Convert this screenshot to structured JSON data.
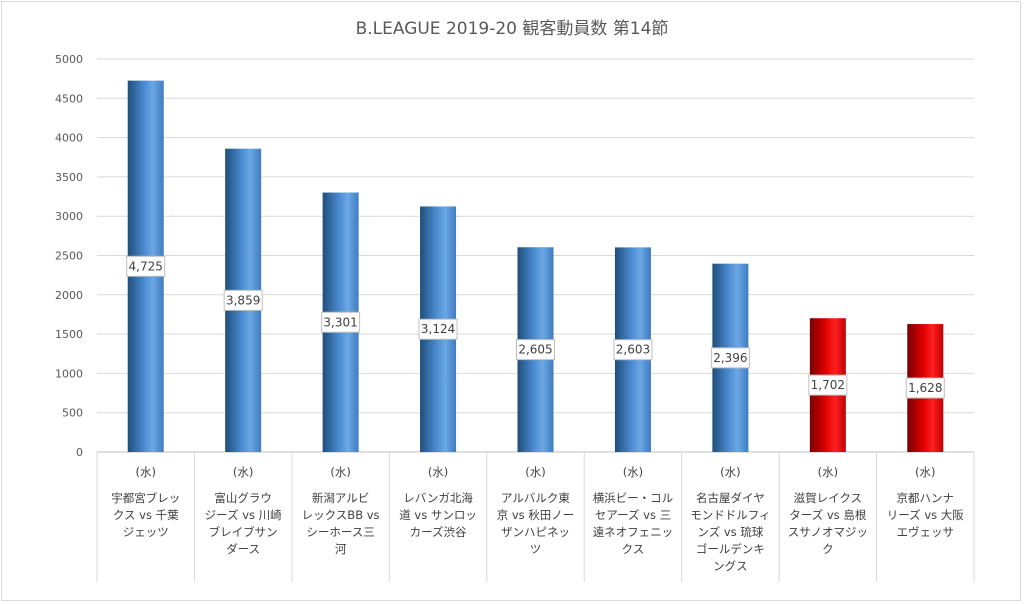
{
  "chart_data": {
    "type": "bar",
    "title": "B.LEAGUE 2019-20 観客動員数 第14節",
    "xlabel": "",
    "ylabel": "",
    "ylim": [
      0,
      5000
    ],
    "yticks": [
      0,
      500,
      1000,
      1500,
      2000,
      2500,
      3000,
      3500,
      4000,
      4500,
      5000
    ],
    "grid": true,
    "legend": "none",
    "categories": [
      {
        "day": "(水)",
        "lines": [
          "宇都宮ブレッ",
          "クス vs 千葉",
          "ジェッツ"
        ]
      },
      {
        "day": "(水)",
        "lines": [
          "富山グラウ",
          "ジーズ vs 川崎",
          "ブレイブサン",
          "ダース"
        ]
      },
      {
        "day": "(水)",
        "lines": [
          "新潟アルビ",
          "レックスBB vs",
          "シーホース三",
          "河"
        ]
      },
      {
        "day": "(水)",
        "lines": [
          "レバンガ北海",
          "道 vs サンロッ",
          "カーズ渋谷"
        ]
      },
      {
        "day": "(水)",
        "lines": [
          "アルバルク東",
          "京 vs 秋田ノー",
          "ザンハピネッ",
          "ツ"
        ]
      },
      {
        "day": "(水)",
        "lines": [
          "横浜ビー・コル",
          "セアーズ vs 三",
          "遠ネオフェニッ",
          "クス"
        ]
      },
      {
        "day": "(水)",
        "lines": [
          "名古屋ダイヤ",
          "モンドドルフィ",
          "ンズ vs 琉球",
          "ゴールデンキ",
          "ングス"
        ]
      },
      {
        "day": "(水)",
        "lines": [
          "滋賀レイクス",
          "ターズ vs 島根",
          "スサノオマジッ",
          "ク"
        ]
      },
      {
        "day": "(水)",
        "lines": [
          "京都ハンナ",
          "リーズ vs 大阪",
          "エヴェッサ"
        ]
      }
    ],
    "values": [
      4725,
      3859,
      3301,
      3124,
      2605,
      2603,
      2396,
      1702,
      1628
    ],
    "labels": [
      "4,725",
      "3,859",
      "3,301",
      "3,124",
      "2,605",
      "2,603",
      "2,396",
      "1,702",
      "1,628"
    ],
    "bar_colors": [
      "#5b9bd5",
      "#5b9bd5",
      "#5b9bd5",
      "#5b9bd5",
      "#5b9bd5",
      "#5b9bd5",
      "#5b9bd5",
      "#e00000",
      "#e00000"
    ]
  }
}
